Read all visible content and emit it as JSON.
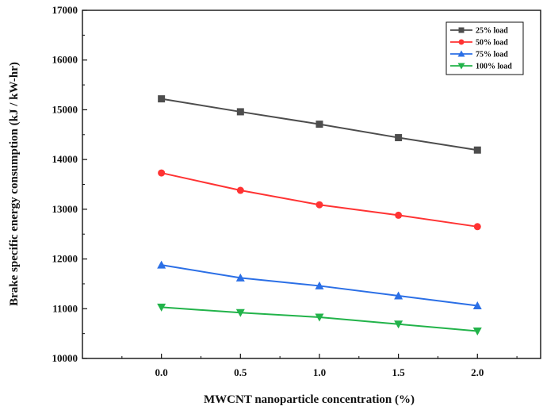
{
  "chart_data": {
    "type": "line",
    "title": "",
    "xlabel": "MWCNT nanoparticle concentration (%)",
    "ylabel": "Brake specific energy consumption (kJ / kW-hr)",
    "x": [
      0.0,
      0.5,
      1.0,
      1.5,
      2.0
    ],
    "x_tick_labels": [
      "0.0",
      "0.5",
      "1.0",
      "1.5",
      "2.0"
    ],
    "xlim": [
      -0.5,
      2.4
    ],
    "ylim": [
      10000,
      17000
    ],
    "y_ticks": [
      10000,
      11000,
      12000,
      13000,
      14000,
      15000,
      16000,
      17000
    ],
    "y_tick_labels": [
      "10000",
      "11000",
      "12000",
      "13000",
      "14000",
      "15000",
      "16000",
      "17000"
    ],
    "grid": false,
    "legend_position": "top-right",
    "series": [
      {
        "name": "25% load",
        "marker": "square",
        "color": "#4d4d4d",
        "values": [
          15220,
          14960,
          14710,
          14440,
          14190
        ]
      },
      {
        "name": "50%  load",
        "marker": "circle",
        "color": "#ff3333",
        "values": [
          13730,
          13380,
          13090,
          12880,
          12650
        ]
      },
      {
        "name": "75% load",
        "marker": "triangle-up",
        "color": "#2b6fe6",
        "values": [
          11880,
          11620,
          11460,
          11260,
          11060
        ]
      },
      {
        "name": "100% load",
        "marker": "triangle-down",
        "color": "#22b34a",
        "values": [
          11030,
          10920,
          10830,
          10690,
          10550
        ]
      }
    ]
  }
}
